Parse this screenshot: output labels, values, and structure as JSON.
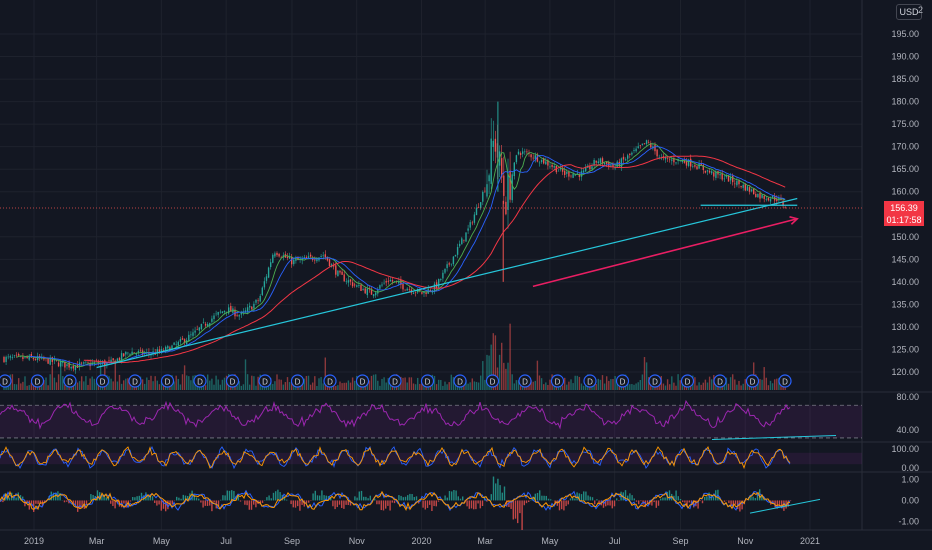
{
  "currency": "USD",
  "corner_label": "2",
  "colors": {
    "background": "#131722",
    "grid": "#1e222d",
    "up": "#26a69a",
    "down": "#ef5350",
    "ma_red": "#f23645",
    "ma_green": "#4caf50",
    "ma_blue": "#2962ff",
    "trendline": "#26c6da",
    "arrow": "#e91e63",
    "rsi": "#9c27b0",
    "macd": "#2962ff",
    "signal": "#ff9800",
    "price_label_bg": "#f23645"
  },
  "price_label": {
    "value": "156.39",
    "countdown": "01:17:58"
  },
  "dividend_marker": "D",
  "chart_data": [
    {
      "type": "line",
      "panel": "price",
      "y_ticks": [
        "195.00",
        "190.00",
        "185.00",
        "180.00",
        "175.00",
        "170.00",
        "165.00",
        "160.00",
        "150.00",
        "145.00",
        "140.00",
        "135.00",
        "130.00",
        "125.00",
        "120.00"
      ],
      "ylim": [
        117,
        198
      ],
      "x_labels": [
        "2019",
        "Mar",
        "May",
        "Jul",
        "Sep",
        "Nov",
        "2020",
        "Mar",
        "May",
        "Jul",
        "Sep",
        "Nov",
        "2021"
      ],
      "grid": true,
      "series": [
        {
          "x": [
            "2019-01-01",
            "2019-01-15",
            "2019-02-01",
            "2019-02-15",
            "2019-03-01",
            "2019-03-15",
            "2019-04-01",
            "2019-04-15",
            "2019-05-01",
            "2019-05-15",
            "2019-06-01",
            "2019-06-15",
            "2019-07-01",
            "2019-07-15",
            "2019-08-01",
            "2019-08-15",
            "2019-09-01",
            "2019-09-15",
            "2019-10-01",
            "2019-10-15",
            "2019-11-01",
            "2019-11-15",
            "2019-12-01",
            "2019-12-15",
            "2020-01-01",
            "2020-01-15",
            "2020-02-01",
            "2020-02-15",
            "2020-03-01",
            "2020-03-10",
            "2020-03-20",
            "2020-04-01",
            "2020-04-15",
            "2020-05-01",
            "2020-05-15",
            "2020-06-01",
            "2020-06-15",
            "2020-07-01",
            "2020-07-15",
            "2020-08-01",
            "2020-08-15",
            "2020-09-01",
            "2020-09-15",
            "2020-10-01",
            "2020-10-15",
            "2020-11-01",
            "2020-11-15",
            "2020-12-01",
            "2020-12-10"
          ],
          "values": [
            123,
            122.5,
            121.5,
            121.5,
            122,
            122,
            124.5,
            124,
            124.5,
            126,
            128.5,
            131.5,
            134,
            132.5,
            136,
            147,
            144.5,
            145,
            146,
            141.5,
            139,
            137.5,
            140.5,
            139,
            137.5,
            139,
            146,
            152,
            161,
            172,
            158,
            169,
            168,
            166,
            164,
            164,
            167,
            165.5,
            168,
            171,
            167,
            167,
            166,
            164,
            163,
            161,
            159,
            158.5,
            156.4
          ]
        }
      ],
      "annotations": {
        "trendline": {
          "from": [
            "2019-03-01",
            121
          ],
          "to": [
            "2020-12-20",
            158.5
          ]
        },
        "horizontal_line": {
          "from": "2020-09-20",
          "to": "2020-12-20",
          "y": 157
        },
        "arrow": {
          "from": [
            "2020-04-15",
            139
          ],
          "to": [
            "2020-12-20",
            154
          ]
        }
      }
    },
    {
      "type": "line",
      "panel": "rsi",
      "y_ticks": [
        "80.00",
        "40.00"
      ],
      "ylim": [
        25,
        85
      ],
      "band": [
        30,
        70
      ]
    },
    {
      "type": "line",
      "panel": "stochastic",
      "y_ticks": [
        "100.00",
        "0.00"
      ],
      "ylim": [
        0,
        100
      ]
    },
    {
      "type": "bar",
      "panel": "macd",
      "y_ticks": [
        "1.00",
        "0.00",
        "-1.00"
      ],
      "ylim": [
        -1.4,
        1.3
      ]
    }
  ]
}
